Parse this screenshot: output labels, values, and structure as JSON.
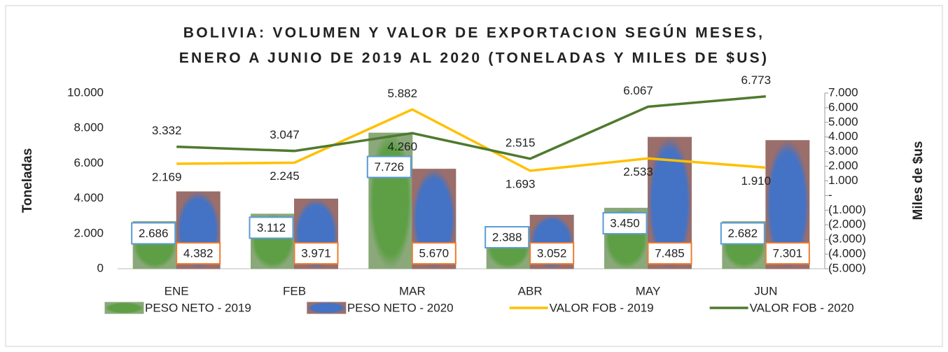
{
  "chart_data": {
    "type": "bar",
    "title": [
      "BOLIVIA: VOLUMEN Y VALOR DE EXPORTACION SEGÚN MESES,",
      "ENERO A JUNIO DE 2019 AL 2020 (TONELADAS Y MILES DE $US)"
    ],
    "ylabel": "Toneladas",
    "y2label": "Miles de $us",
    "categories": [
      "ENE",
      "FEB",
      "MAR",
      "ABR",
      "MAY",
      "JUN"
    ],
    "ylim": [
      0,
      10000
    ],
    "yticks": [
      0,
      {
        "value": 2000,
        "label": "2.000"
      },
      {
        "value": 4000,
        "label": "4.000"
      },
      {
        "value": 6000,
        "label": "6.000"
      },
      {
        "value": 8000,
        "label": "8.000"
      },
      {
        "value": 10000,
        "label": "10.000"
      }
    ],
    "y2lim": [
      -5000,
      7000
    ],
    "y2ticks": [
      {
        "value": -5000,
        "label": "(5.000)"
      },
      {
        "value": -4000,
        "label": "(4.000)"
      },
      {
        "value": -3000,
        "label": "(3.000)"
      },
      {
        "value": -2000,
        "label": "(2.000)"
      },
      {
        "value": -1000,
        "label": "(1.000)"
      },
      {
        "value": 0,
        "label": "-"
      },
      {
        "value": 1000,
        "label": "1.000"
      },
      {
        "value": 2000,
        "label": "2.000"
      },
      {
        "value": 3000,
        "label": "3.000"
      },
      {
        "value": 4000,
        "label": "4.000"
      },
      {
        "value": 5000,
        "label": "5.000"
      },
      {
        "value": 6000,
        "label": "6.000"
      },
      {
        "value": 7000,
        "label": "7.000"
      }
    ],
    "legend": "bottom",
    "series": [
      {
        "name": "PESO NETO - 2019",
        "type": "bar",
        "color": "#5e9f46",
        "values": [
          2686,
          3112,
          7726,
          2388,
          3450,
          2682
        ],
        "value_labels": [
          "2.686",
          "3.112",
          "7.726",
          "2.388",
          "3.450",
          "2.682"
        ]
      },
      {
        "name": "PESO NETO - 2020",
        "type": "bar",
        "color": "#4472c4",
        "values": [
          4382,
          3971,
          5670,
          3052,
          7485,
          7301
        ],
        "value_labels": [
          "4.382",
          "3.971",
          "5.670",
          "3.052",
          "7.485",
          "7.301"
        ]
      },
      {
        "name": "VALOR FOB - 2019",
        "type": "line",
        "axis": "y2",
        "color": "#ffc000",
        "values": [
          2169,
          2245,
          5882,
          1693,
          2533,
          1910
        ],
        "value_labels": [
          "2.169",
          "2.245",
          "5.882",
          "1.693",
          "2.533",
          "1.910"
        ]
      },
      {
        "name": "VALOR FOB - 2020",
        "type": "line",
        "axis": "y2",
        "color": "#4e7a2e",
        "values": [
          3332,
          3047,
          4260,
          2515,
          6067,
          6773
        ],
        "value_labels": [
          "3.332",
          "3.047",
          "4.260",
          "2.515",
          "6.067",
          "6.773"
        ]
      }
    ]
  }
}
